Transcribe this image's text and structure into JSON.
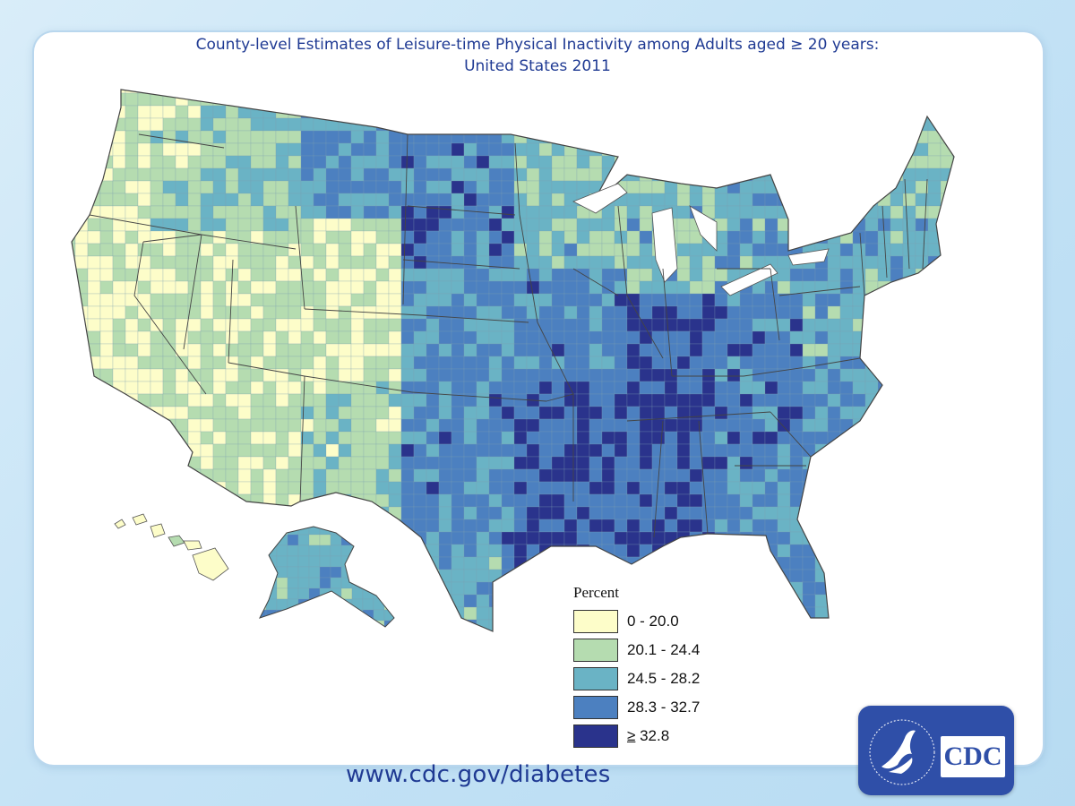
{
  "title": {
    "line1": "County-level Estimates of Leisure-time Physical Inactivity among Adults aged ≥ 20 years:",
    "line2": "United States 2011"
  },
  "legend": {
    "title": "Percent",
    "items": [
      {
        "label": "0 - 20.0",
        "color": "#fdfdc9"
      },
      {
        "label": "20.1 - 24.4",
        "color": "#b5dcb0"
      },
      {
        "label": "24.5 - 28.2",
        "color": "#6ab3c5"
      },
      {
        "label": "28.3 - 32.7",
        "color": "#4c80c0"
      },
      {
        "label_prefix": "≥",
        "label": "32.8",
        "color": "#2a338c"
      }
    ]
  },
  "footer": {
    "url": "www.cdc.gov/diabetes"
  },
  "logo": {
    "text": "CDC"
  },
  "colors": {
    "title": "#1f3a93",
    "logo_bg": "#2f4fa8",
    "border": "#555555"
  }
}
